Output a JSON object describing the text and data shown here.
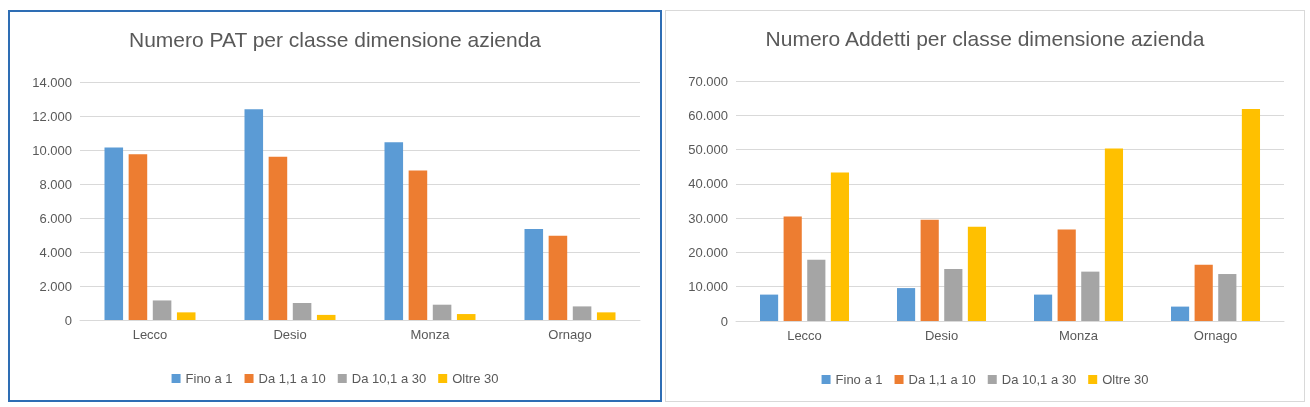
{
  "chart_data": [
    {
      "type": "bar",
      "title": "Numero PAT per classe dimensione azienda",
      "categories": [
        "Lecco",
        "Desio",
        "Monza",
        "Ornago"
      ],
      "series": [
        {
          "name": "Fino a 1",
          "color": "#5b9bd5",
          "values": [
            10150,
            12400,
            10450,
            5350
          ]
        },
        {
          "name": "Da 1,1 a 10",
          "color": "#ed7d31",
          "values": [
            9750,
            9600,
            8800,
            4950
          ]
        },
        {
          "name": "Da 10,1 a 30",
          "color": "#a5a5a5",
          "values": [
            1150,
            1000,
            900,
            800
          ]
        },
        {
          "name": "Oltre 30",
          "color": "#ffc000",
          "values": [
            450,
            300,
            350,
            450
          ]
        }
      ],
      "ylim": [
        0,
        14000
      ],
      "yticks": [
        0,
        {
          "value": 2000,
          "label": "2.000"
        },
        {
          "value": 4000,
          "label": "4.000"
        },
        {
          "value": 6000,
          "label": "6.000"
        },
        {
          "value": 8000,
          "label": "8.000"
        },
        {
          "value": 10000,
          "label": "10.000"
        },
        {
          "value": 12000,
          "label": "12.000"
        },
        {
          "value": 14000,
          "label": "14.000"
        }
      ],
      "grid": "y",
      "legend": "bottom"
    },
    {
      "type": "bar",
      "title": "Numero Addetti per classe dimensione azienda",
      "categories": [
        "Lecco",
        "Desio",
        "Monza",
        "Ornago"
      ],
      "series": [
        {
          "name": "Fino a 1",
          "color": "#5b9bd5",
          "values": [
            7700,
            9600,
            7700,
            4200
          ]
        },
        {
          "name": "Da 1,1 a 10",
          "color": "#ed7d31",
          "values": [
            30500,
            29500,
            26700,
            16400
          ]
        },
        {
          "name": "Da 10,1 a 30",
          "color": "#a5a5a5",
          "values": [
            17900,
            15200,
            14400,
            13700
          ]
        },
        {
          "name": "Oltre 30",
          "color": "#ffc000",
          "values": [
            43300,
            27500,
            50300,
            61800
          ]
        }
      ],
      "ylim": [
        0,
        70000
      ],
      "yticks": [
        0,
        {
          "value": 10000,
          "label": "10.000"
        },
        {
          "value": 20000,
          "label": "20.000"
        },
        {
          "value": 30000,
          "label": "30.000"
        },
        {
          "value": 40000,
          "label": "40.000"
        },
        {
          "value": 50000,
          "label": "50.000"
        },
        {
          "value": 60000,
          "label": "60.000"
        },
        {
          "value": 70000,
          "label": "70.000"
        }
      ],
      "grid": "y",
      "legend": "bottom"
    }
  ]
}
